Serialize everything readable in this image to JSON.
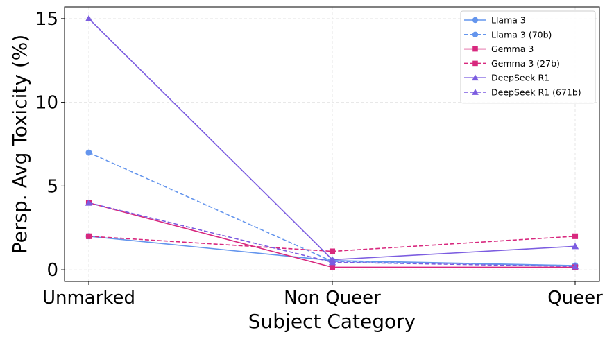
{
  "chart_data": {
    "type": "line",
    "title": "",
    "xlabel": "Subject Category",
    "ylabel": "Persp. Avg Toxicity (%)",
    "categories": [
      "Unmarked",
      "Non Queer",
      "Queer"
    ],
    "ylim": [
      -0.7,
      15.7
    ],
    "yticks": [
      0,
      5,
      10,
      15
    ],
    "grid": true,
    "legend_position": "top-right",
    "series": [
      {
        "name": "Llama 3",
        "color": "#6495ED",
        "dash": "solid",
        "marker": "circle",
        "values": [
          2.0,
          0.55,
          0.25
        ]
      },
      {
        "name": "Llama 3 (70b)",
        "color": "#6495ED",
        "dash": "dashed",
        "marker": "circle",
        "values": [
          7.0,
          0.5,
          0.25
        ]
      },
      {
        "name": "Gemma 3",
        "color": "#D8287E",
        "dash": "solid",
        "marker": "square",
        "values": [
          4.0,
          0.15,
          0.15
        ]
      },
      {
        "name": "Gemma 3 (27b)",
        "color": "#D8287E",
        "dash": "dashed",
        "marker": "square",
        "values": [
          2.0,
          1.1,
          2.0
        ]
      },
      {
        "name": "DeepSeek R1",
        "color": "#7B5CE0",
        "dash": "solid",
        "marker": "triangle",
        "values": [
          15.0,
          0.6,
          1.4
        ]
      },
      {
        "name": "DeepSeek R1 (671b)",
        "color": "#7B5CE0",
        "dash": "dashed",
        "marker": "triangle",
        "values": [
          4.0,
          0.45,
          0.2
        ]
      }
    ]
  }
}
